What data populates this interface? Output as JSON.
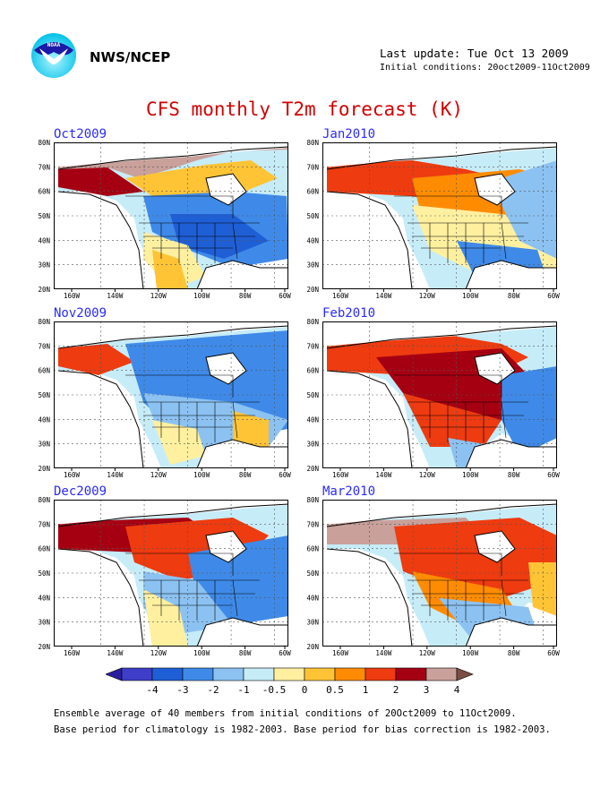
{
  "header": {
    "org": "NWS/NCEP",
    "last_update": "Last update: Tue Oct 13 2009",
    "initial_conditions": "Initial conditions: 20oct2009-11Oct2009"
  },
  "title": "CFS monthly T2m forecast (K)",
  "axes": {
    "lat_labels": [
      "80N",
      "70N",
      "60N",
      "50N",
      "40N",
      "30N",
      "20N"
    ],
    "lon_labels": [
      "160W",
      "140W",
      "120W",
      "100W",
      "80W",
      "60W"
    ]
  },
  "panels": [
    {
      "month": "Oct2009"
    },
    {
      "month": "Jan2010"
    },
    {
      "month": "Nov2009"
    },
    {
      "month": "Feb2010"
    },
    {
      "month": "Dec2009"
    },
    {
      "month": "Mar2010"
    }
  ],
  "colorbar": {
    "labels": [
      "-4",
      "-3",
      "-2",
      "-1",
      "-0.5",
      "0",
      "0.5",
      "1",
      "2",
      "3",
      "4"
    ],
    "colors": [
      "#2b1e9e",
      "#3e3ec8",
      "#1f5fd6",
      "#3f8ae8",
      "#8cc2f2",
      "#c6ecf8",
      "#fff0a0",
      "#ffc436",
      "#ff8c00",
      "#ee3b10",
      "#a50012",
      "#c9a09a",
      "#7a4e44"
    ]
  },
  "notes": [
    "Ensemble average of 40 members from initial conditions of 20Oct2009 to 11Oct2009.",
    "Base period for climatology is 1982-2003. Base period for bias correction is 1982-2003."
  ]
}
